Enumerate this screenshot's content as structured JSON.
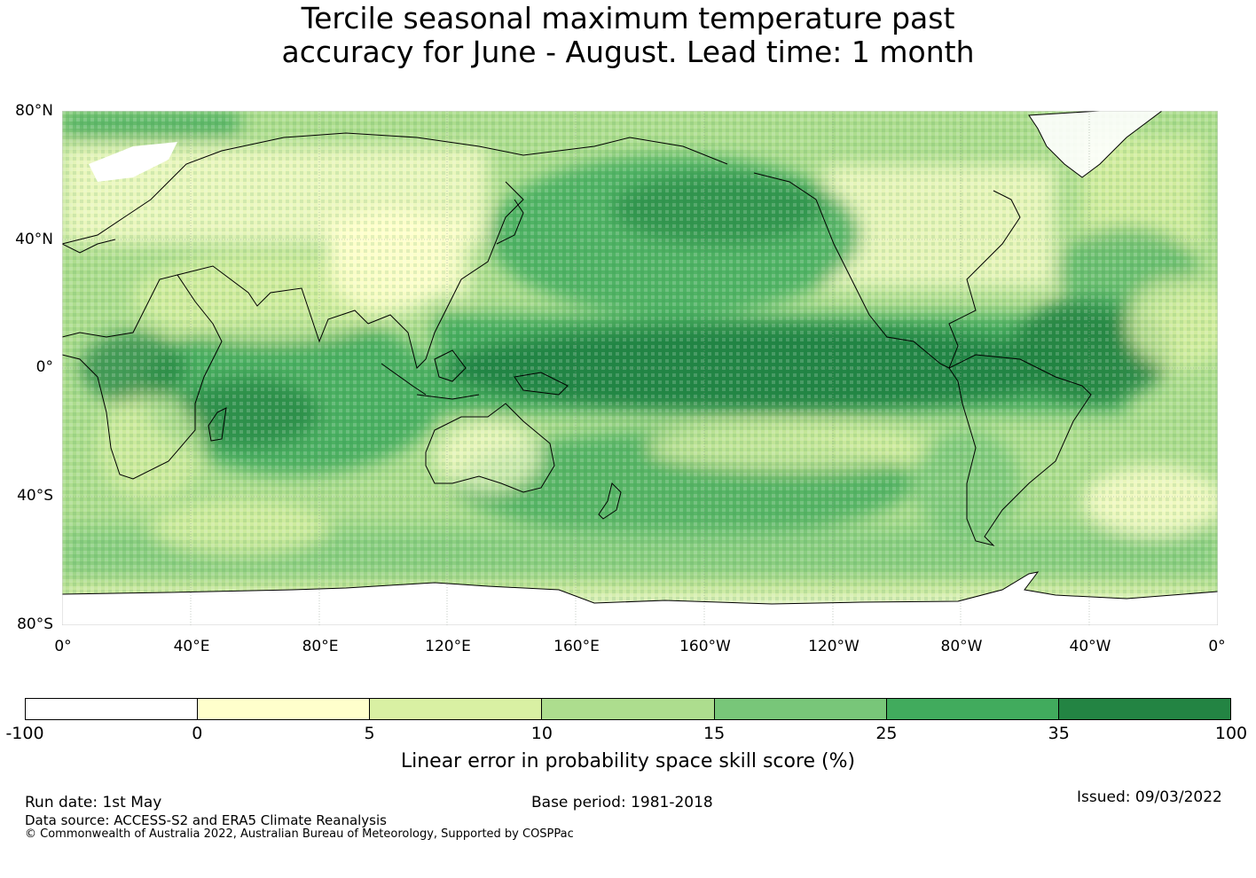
{
  "title": {
    "line1": "Tercile seasonal maximum temperature past",
    "line2": "accuracy for June - August. Lead time: 1 month"
  },
  "map": {
    "lat_labels": [
      "80°N",
      "40°N",
      "0°",
      "40°S",
      "80°S"
    ],
    "lon_labels": [
      "0°",
      "40°E",
      "80°E",
      "120°E",
      "160°E",
      "160°W",
      "120°W",
      "80°W",
      "40°W",
      "0°"
    ]
  },
  "colorbar": {
    "label": "Linear error in probability space skill score (%)",
    "ticks": [
      "-100",
      "0",
      "5",
      "10",
      "15",
      "25",
      "35",
      "100"
    ],
    "colors": [
      "#ffffff",
      "#ffffcc",
      "#d9f0a3",
      "#addd8e",
      "#78c679",
      "#41ab5d",
      "#238443"
    ]
  },
  "footer": {
    "run_date": "Run date: 1st May",
    "base_period": "Base period: 1981-2018",
    "issued": "Issued: 09/03/2022",
    "data_source": "Data source: ACCESS-S2 and ERA5 Climate Reanalysis",
    "copyright": "© Commonwealth of Australia 2022, Australian Bureau of Meteorology, Supported by COSPPac"
  }
}
